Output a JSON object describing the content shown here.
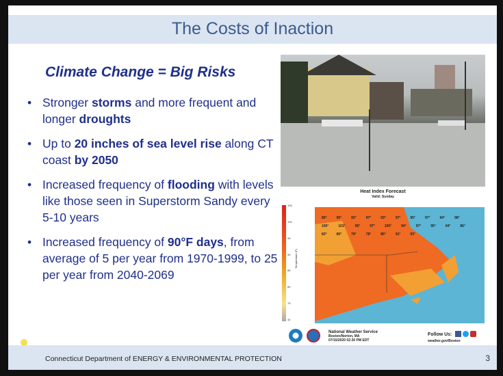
{
  "title": "The Costs of Inaction",
  "subtitle": "Climate Change = Big Risks",
  "bullets": [
    {
      "parts": [
        "Stronger ",
        "storms",
        " and more frequent and longer ",
        "droughts",
        ""
      ]
    },
    {
      "parts": [
        "Up to ",
        "20 inches of sea level rise",
        " along CT coast ",
        "by 2050",
        ""
      ]
    },
    {
      "parts": [
        "Increased frequency of ",
        "flooding",
        " with levels like those seen in Superstorm Sandy every 5-10 years",
        "",
        ""
      ]
    },
    {
      "parts": [
        "Increased frequency of ",
        "90°F days",
        ", from average of 5 per year from 1970-1999, to 25 per year from 2040-2069",
        "",
        ""
      ]
    }
  ],
  "map": {
    "title": "Heat Index Forecast",
    "valid": "Valid: Sunday",
    "scale_label": "Temperature (F)",
    "scale": [
      "105",
      "100",
      "95",
      "90",
      "85",
      "80",
      "75",
      "40"
    ],
    "nws": "National Weather Service",
    "office": "Boston/Norton, MA",
    "timestamp": "07/15/2020 02:30 PM EDT",
    "follow": "Follow Us:",
    "site": "weather.gov/Boston",
    "temps": [
      "89°",
      "90°",
      "92°",
      "97°",
      "93°",
      "97°",
      "95°",
      "97°",
      "94°",
      "98°",
      "100°",
      "101°",
      "95°",
      "97°",
      "100°",
      "94°",
      "97°",
      "95°",
      "94°",
      "86°",
      "83°",
      "80°",
      "79°",
      "78°",
      "85°",
      "91°",
      "93°"
    ]
  },
  "footer": {
    "org": "Connecticut Department of ENERGY & ENVIRONMENTAL PROTECTION",
    "page": "3"
  }
}
